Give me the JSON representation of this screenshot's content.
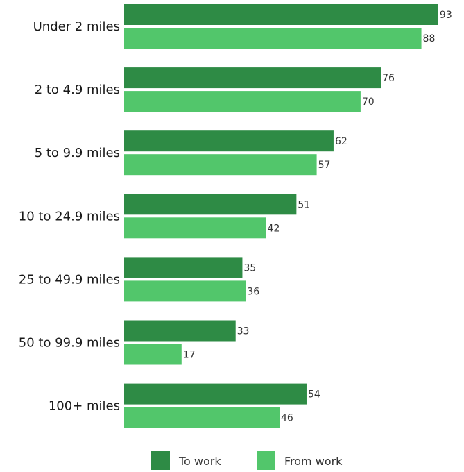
{
  "chart_data": {
    "type": "bar",
    "orientation": "horizontal",
    "categories": [
      "Under 2 miles",
      "2 to 4.9 miles",
      "5 to 9.9 miles",
      "10 to 24.9 miles",
      "25 to 49.9 miles",
      "50 to 99.9 miles",
      "100+ miles"
    ],
    "series": [
      {
        "name": "To work",
        "values": [
          93,
          76,
          62,
          51,
          35,
          33,
          54
        ],
        "color": "#2e8b45"
      },
      {
        "name": "From work",
        "values": [
          88,
          70,
          57,
          42,
          36,
          17,
          46
        ],
        "color": "#52c66b"
      }
    ],
    "xlim": [
      0,
      100
    ],
    "grid": false,
    "legend_position": "bottom-center"
  }
}
